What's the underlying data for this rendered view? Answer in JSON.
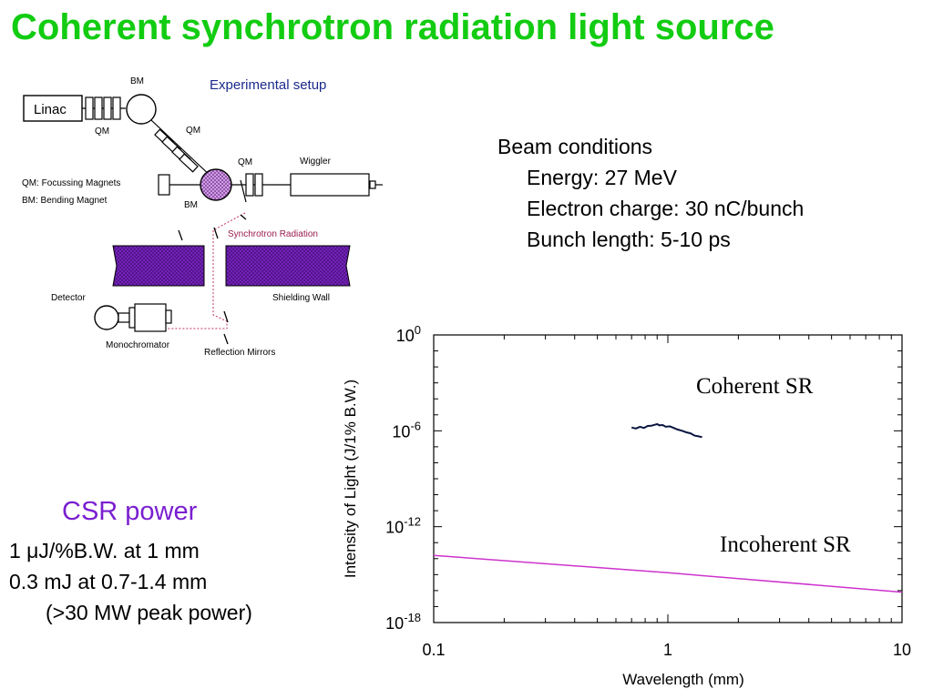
{
  "title": "Coherent synchrotron radiation light source",
  "setup": {
    "heading": "Experimental setup",
    "linac": "Linac",
    "bm": "BM",
    "qm": "QM",
    "wiggler": "Wiggler",
    "legend_qm": "QM: Focussing Magnets",
    "legend_bm": "BM: Bending Magnet",
    "synchrotron_radiation": "Synchrotron Radiation",
    "shielding_wall": "Shielding Wall",
    "detector": "Detector",
    "monochromator": "Monochromator",
    "reflection_mirrors": "Reflection Mirrors",
    "colors": {
      "heading": "#1b2a8c",
      "magnet_fill": "#d8a6ea",
      "wall_fill": "#7a22c0",
      "sr_label": "#9a1c4d"
    }
  },
  "beam": {
    "heading": "Beam conditions",
    "energy": "Energy: 27 MeV",
    "charge": "Electron charge: 30 nC/bunch",
    "bunch": "Bunch length: 5-10 ps"
  },
  "csr": {
    "title": "CSR power",
    "line1": "1 μJ/%B.W. at 1 mm",
    "line2": "0.3 mJ at 0.7-1.4 mm",
    "line3": "(>30 MW peak power)"
  },
  "chart_data": {
    "type": "line",
    "xscale": "log",
    "yscale": "log",
    "xlim": [
      0.1,
      10
    ],
    "ylim": [
      1e-18,
      1
    ],
    "xlabel": "Wavelength (mm)",
    "ylabel": "Intensity of Light (J/1% B.W.)",
    "xticklabels": [
      "0.1",
      "1",
      "10"
    ],
    "yticklabels": [
      {
        "base": "10",
        "exp": "0",
        "value": 1
      },
      {
        "base": "10",
        "exp": "-6",
        "value": 1e-06
      },
      {
        "base": "10",
        "exp": "-12",
        "value": 1e-12
      },
      {
        "base": "10",
        "exp": "-18",
        "value": 1e-18
      }
    ],
    "series": [
      {
        "name": "Coherent SR",
        "color": "#0a1640",
        "x": [
          0.7,
          0.73,
          0.76,
          0.79,
          0.82,
          0.85,
          0.88,
          0.9,
          0.92,
          0.95,
          0.98,
          1.02,
          1.06,
          1.1,
          1.15,
          1.2,
          1.25,
          1.3,
          1.35,
          1.4
        ],
        "y": [
          1.6e-06,
          1.4e-06,
          1.8e-06,
          1.5e-06,
          2e-06,
          2.1e-06,
          2.4e-06,
          2.6e-06,
          2.2e-06,
          2.3e-06,
          1.8e-06,
          1.9e-06,
          1.5e-06,
          1.2e-06,
          1e-06,
          8e-07,
          7e-07,
          5e-07,
          4.5e-07,
          4e-07
        ]
      },
      {
        "name": "Incoherent SR",
        "color": "#cc33cc",
        "x": [
          0.1,
          1,
          10
        ],
        "y": [
          1.6e-14,
          1.3e-15,
          8e-17
        ]
      }
    ],
    "annotations": [
      "Coherent SR",
      "Incoherent SR"
    ]
  }
}
